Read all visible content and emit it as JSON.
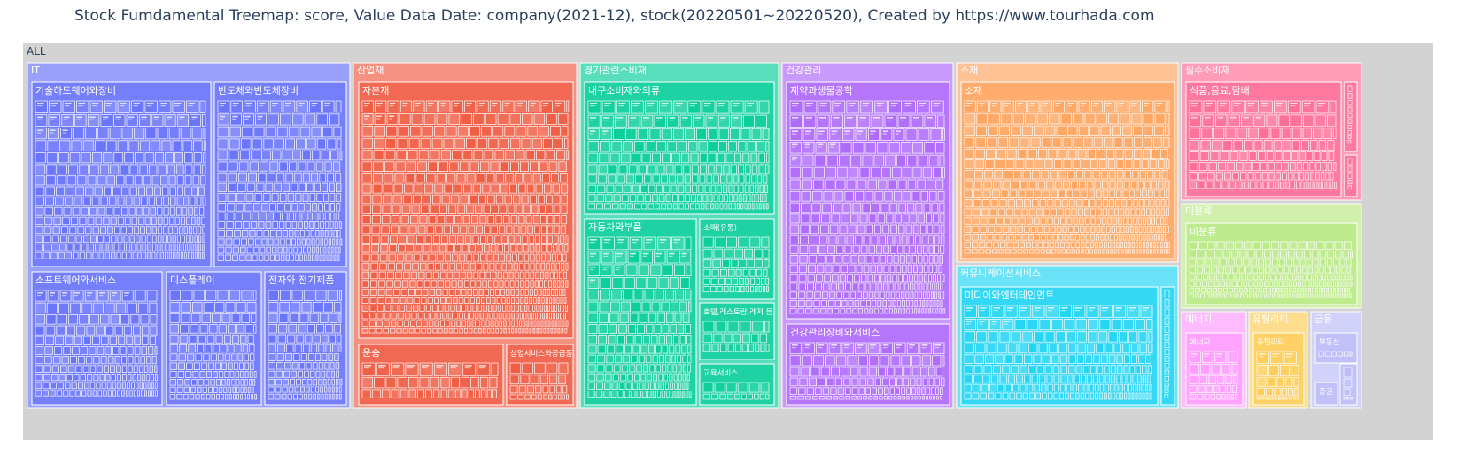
{
  "chart_data": {
    "type": "treemap",
    "title": "Stock Fumdamental Treemap: score, Value Data Date: company(2021-12), stock(20220501~20220520), Created by https://www.tourhada.com",
    "root": "ALL",
    "sectors": [
      {
        "name": "IT",
        "color": "#636efa",
        "industries": [
          {
            "name": "기술하드웨어와장비",
            "count": 150
          },
          {
            "name": "반도체와반도체장비",
            "count": 120
          },
          {
            "name": "소프트웨어와서비스",
            "count": 90
          },
          {
            "name": "디스플레이",
            "count": 70
          },
          {
            "name": "전자와 전기제품",
            "count": 60
          }
        ]
      },
      {
        "name": "산업재",
        "color": "#ef553b",
        "industries": [
          {
            "name": "자본재",
            "count": 300
          },
          {
            "name": "운송",
            "count": 26
          },
          {
            "name": "상업서비스와공급품",
            "count": 16
          }
        ]
      },
      {
        "name": "경기관련소비재",
        "color": "#00cc96",
        "industries": [
          {
            "name": "내구소비재와의류",
            "count": 100
          },
          {
            "name": "자동차와부품",
            "count": 90
          },
          {
            "name": "소매(유통)",
            "count": 30
          },
          {
            "name": "호텔,레스토랑,레저 등",
            "count": 16
          },
          {
            "name": "교육서비스",
            "count": 10
          }
        ]
      },
      {
        "name": "건강관리",
        "color": "#ab63fa",
        "industries": [
          {
            "name": "제약과생물공학",
            "count": 170
          },
          {
            "name": "건강관리장비와서비스",
            "count": 55
          }
        ]
      },
      {
        "name": "소재",
        "color": "#ffa15a",
        "industries": [
          {
            "name": "소재",
            "count": 200
          }
        ]
      },
      {
        "name": "커뮤니케이션서비스",
        "color": "#19d3f3",
        "industries": [
          {
            "name": "미디어와엔터테인먼트",
            "count": 100
          },
          {
            "name": "",
            "count": 10
          }
        ]
      },
      {
        "name": "필수소비재",
        "color": "#ff6692",
        "industries": [
          {
            "name": "식품,음료,담배",
            "count": 70
          },
          {
            "name": "",
            "count": 8
          },
          {
            "name": "",
            "count": 4
          }
        ]
      },
      {
        "name": "미분류",
        "color": "#b6e880",
        "industries": [
          {
            "name": "미분류",
            "count": 120
          }
        ]
      },
      {
        "name": "에너지",
        "color": "#ff97ff",
        "industries": [
          {
            "name": "에너지",
            "count": 16
          }
        ]
      },
      {
        "name": "유틸리티",
        "color": "#fecb52",
        "industries": [
          {
            "name": "유틸리티",
            "count": 12
          }
        ]
      },
      {
        "name": "금융",
        "color": "#b8b8f8",
        "industries": [
          {
            "name": "부동산",
            "count": 8
          },
          {
            "name": "증권",
            "count": 3
          },
          {
            "name": "",
            "count": 3
          }
        ]
      }
    ]
  }
}
